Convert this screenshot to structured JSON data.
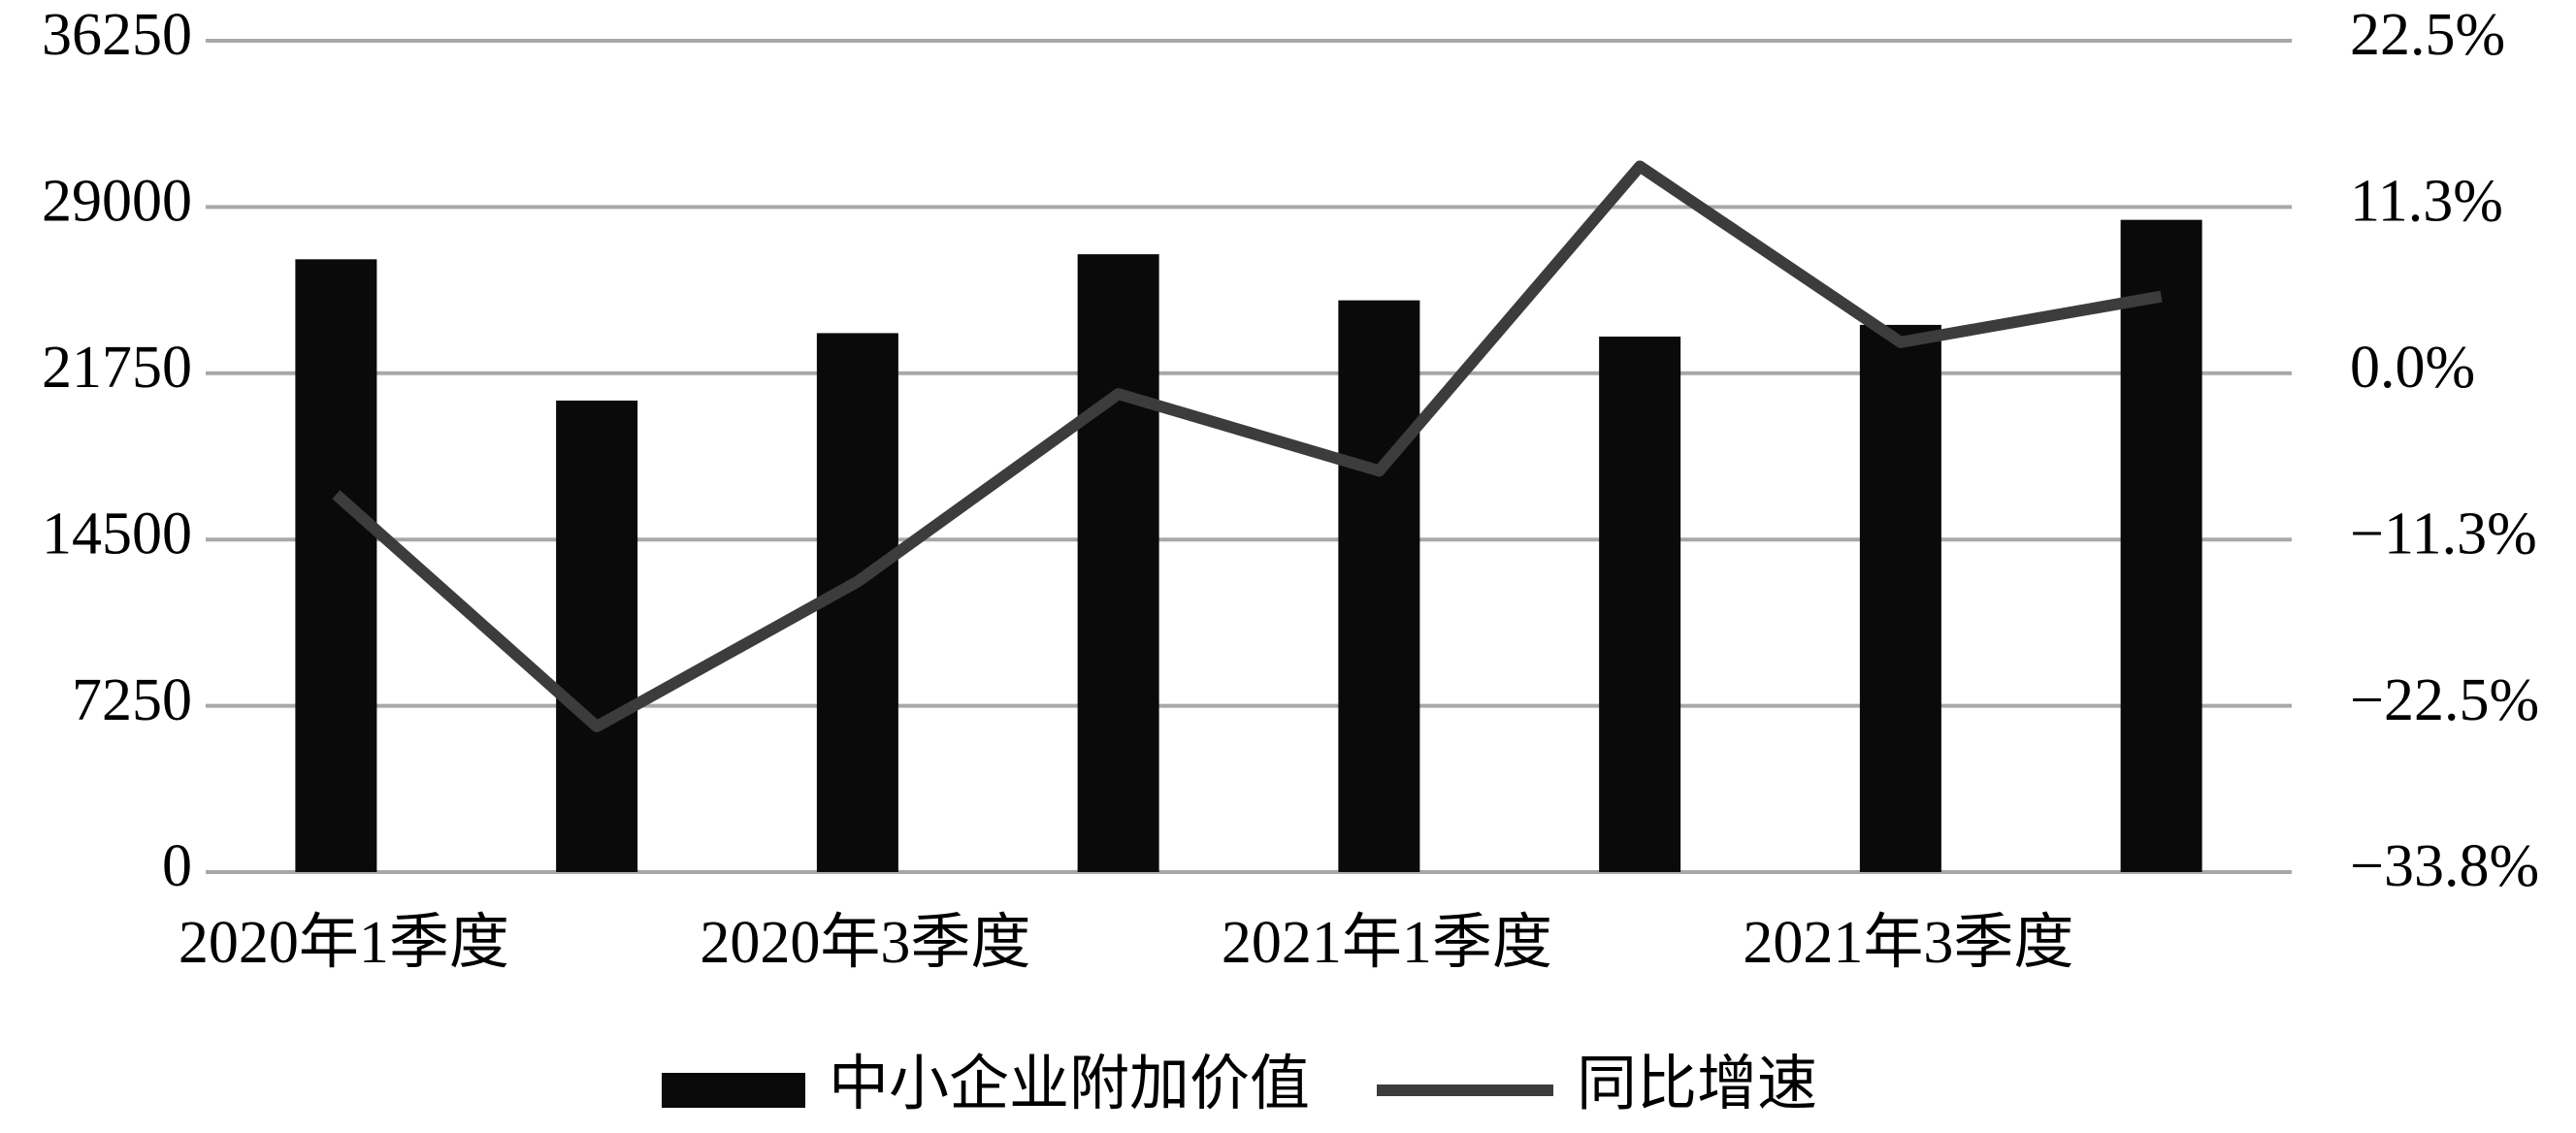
{
  "chart_data": {
    "type": "bar_line",
    "categories": [
      "2020年1季度",
      null,
      "2020年3季度",
      null,
      "2021年1季度",
      null,
      "2021年3季度",
      null
    ],
    "series": [
      {
        "name": "中小企业附加价值",
        "type": "bar",
        "color": "#0a0a0a",
        "values": [
          26720,
          20560,
          23500,
          26940,
          24930,
          23350,
          23860,
          28440
        ]
      },
      {
        "name": "同比增速",
        "type": "line",
        "axis": "y2",
        "color": "#3c3c3c",
        "values": [
          -8.2,
          -23.9,
          -14.1,
          -1.4,
          -6.6,
          14.0,
          2.1,
          5.2
        ]
      }
    ],
    "ylim": [
      0,
      36250
    ],
    "yticks": [
      0,
      7250,
      14500,
      21750,
      29000,
      36250
    ],
    "y2lim": [
      -33.75,
      22.5
    ],
    "y2ticks": [
      {
        "value": -33.75,
        "label": "−33.8%"
      },
      {
        "value": -22.5,
        "label": "−22.5%"
      },
      {
        "value": -11.25,
        "label": "−11.3%"
      },
      {
        "value": 0,
        "label": "0.0%"
      },
      {
        "value": 11.25,
        "label": "11.3%"
      },
      {
        "value": 22.5,
        "label": "22.5%"
      }
    ],
    "grid": true,
    "legend": "bottom"
  }
}
